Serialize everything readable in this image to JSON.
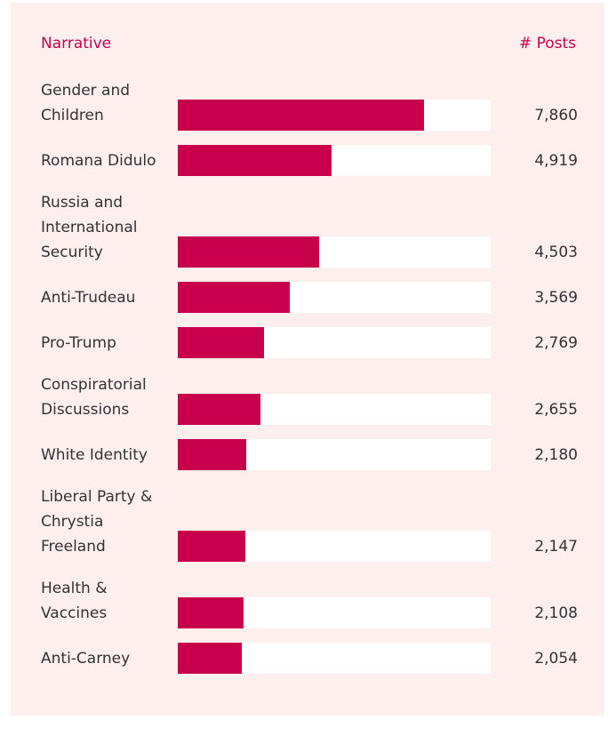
{
  "chart_data": {
    "type": "bar",
    "orientation": "horizontal",
    "category_header": "Narrative",
    "value_header": "# Posts",
    "categories": [
      "Gender and Children",
      "Romana Didulo",
      "Russia and International Security",
      "Anti-Trudeau",
      "Pro-Trump",
      "Conspiratorial Discussions",
      "White Identity",
      "Liberal Party & Chrystia Freeland",
      "Health & Vaccines",
      "Anti-Carney"
    ],
    "values": [
      7860,
      4919,
      4503,
      3569,
      2769,
      2655,
      2180,
      2147,
      2108,
      2054
    ],
    "value_labels": [
      "7,860",
      "4,919",
      "4,503",
      "3,569",
      "2,769",
      "2,655",
      "2,180",
      "2,147",
      "2,108",
      "2,054"
    ],
    "color": "#c8004b",
    "xlim": [
      0,
      10000
    ]
  }
}
